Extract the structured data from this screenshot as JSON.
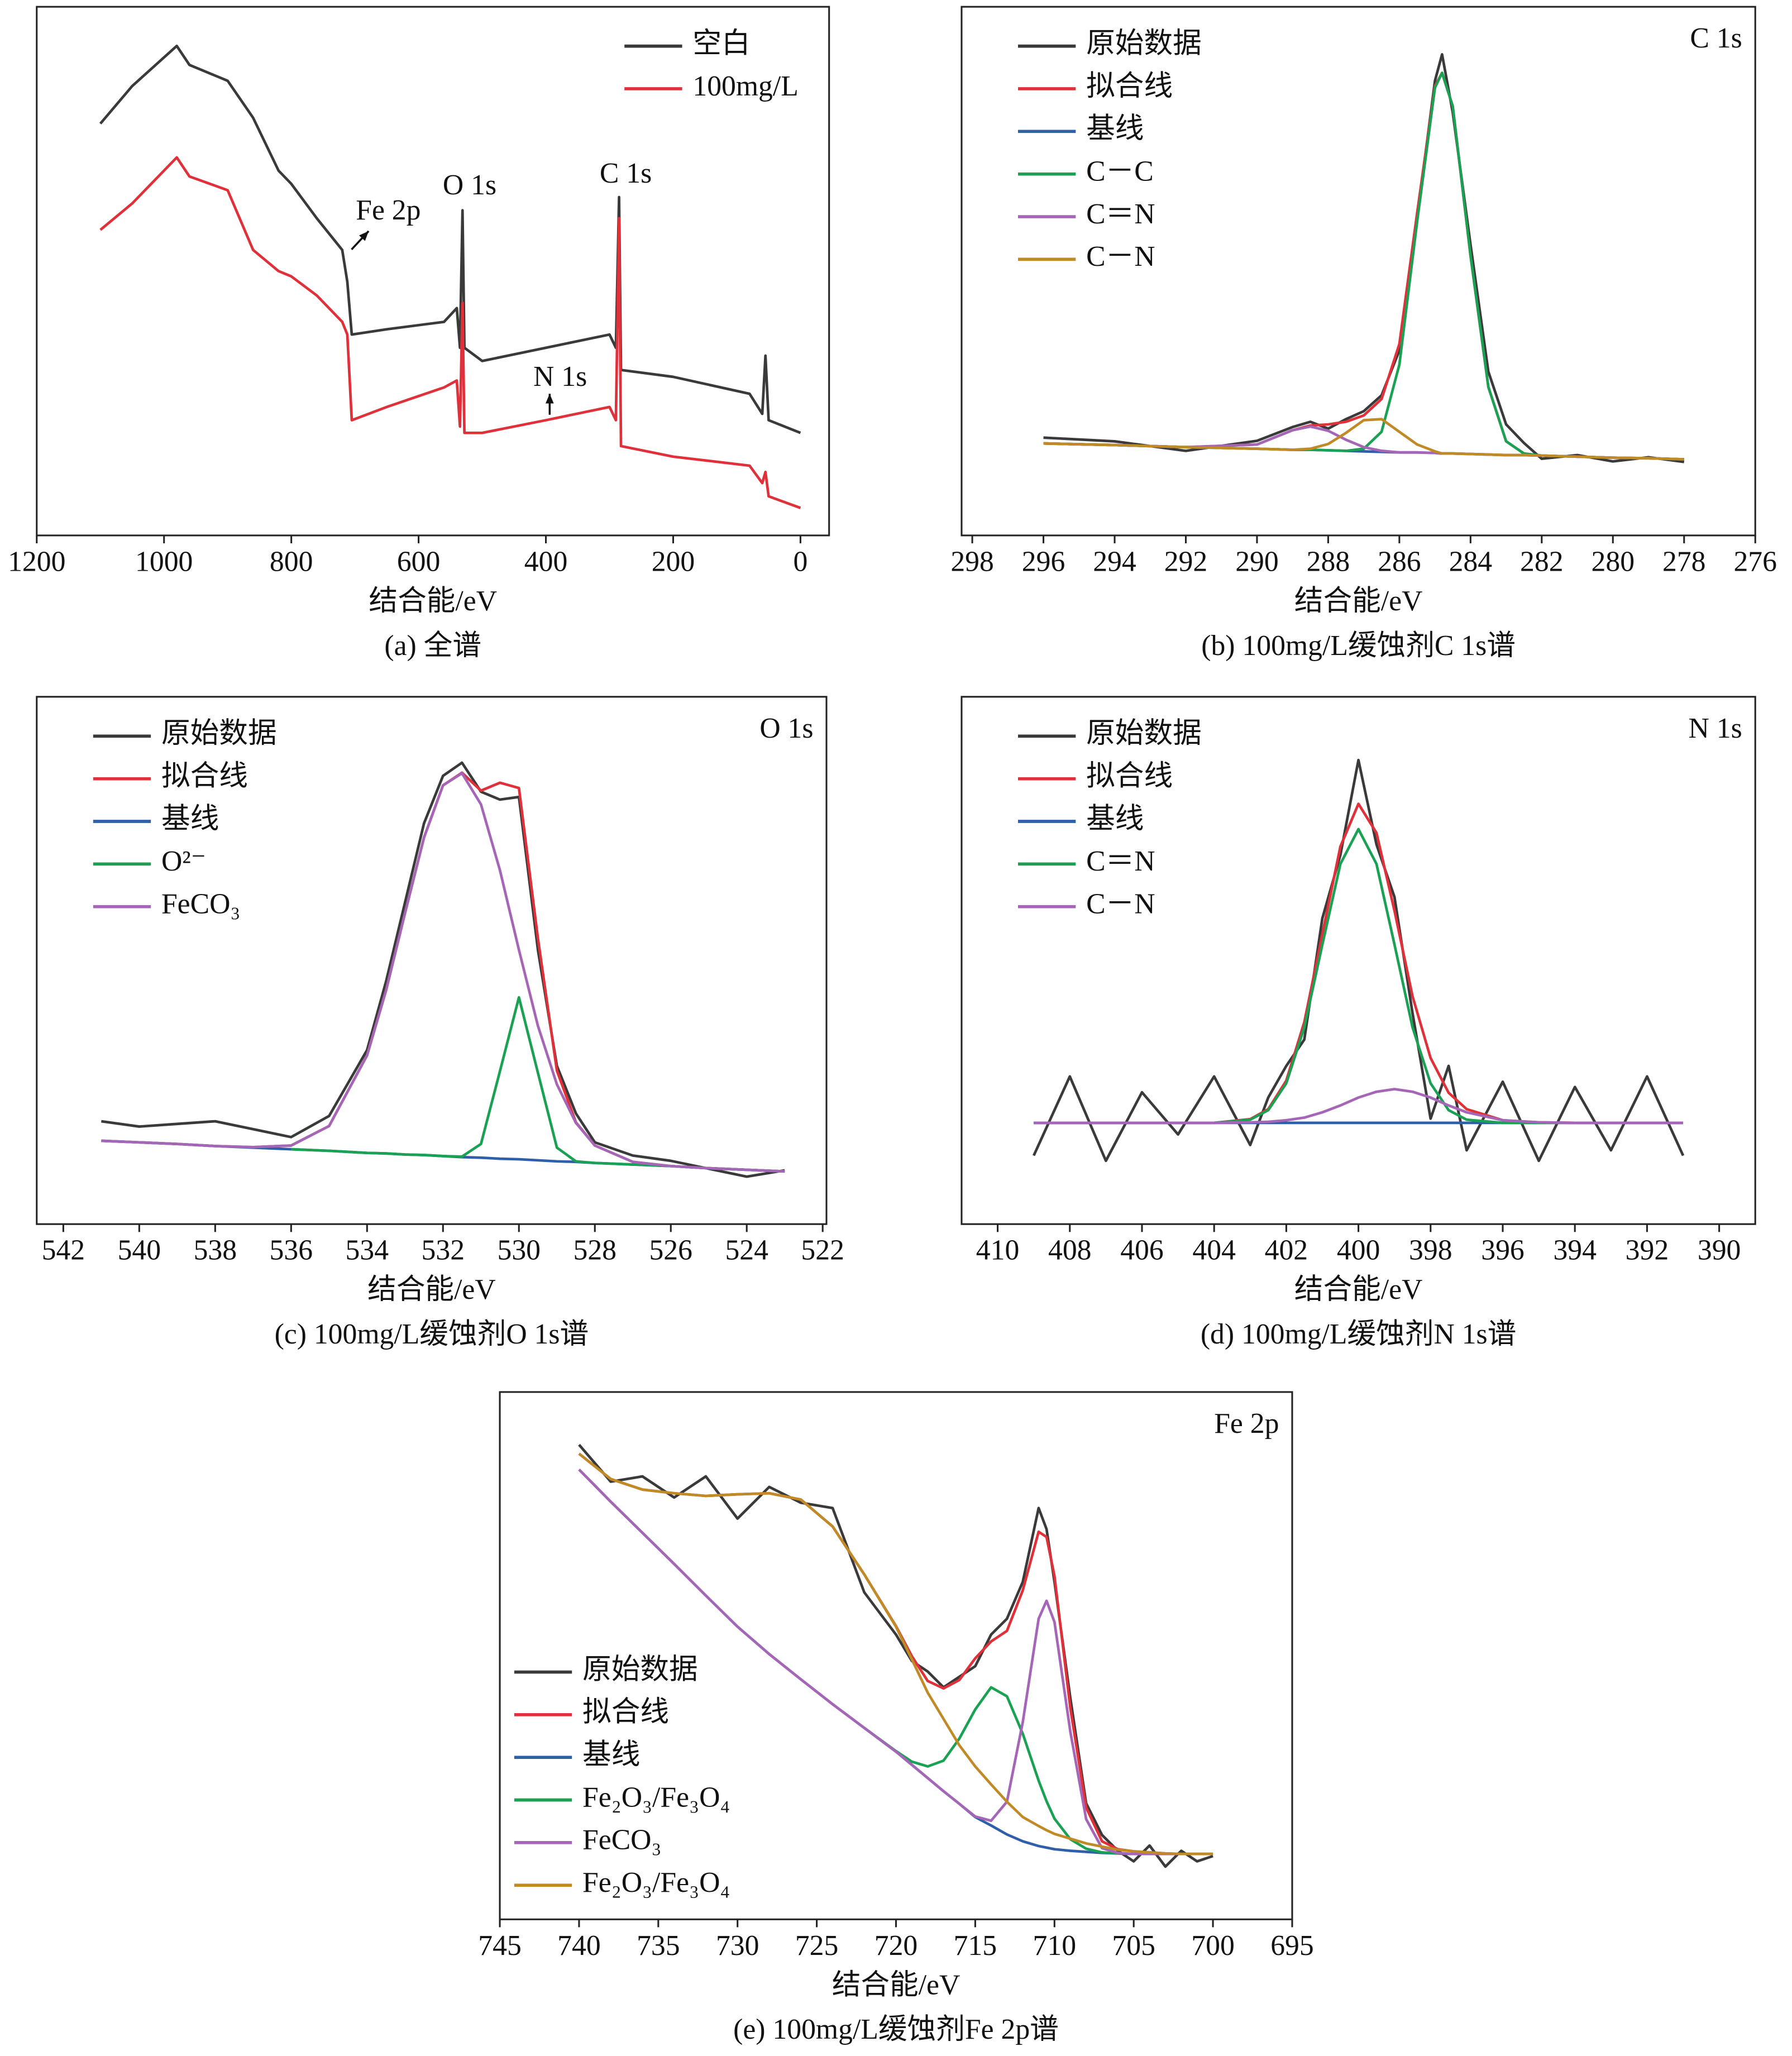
{
  "chart_data": [
    {
      "type": "line",
      "xlabel": "结合能/eV",
      "caption": "(a) 全谱",
      "legend": "upper right",
      "annotations": [
        "Fe 2p",
        "O 1s",
        "N 1s",
        "C 1s"
      ],
      "xlim": [
        1200,
        -45
      ],
      "ylim": [
        0,
        100
      ],
      "xticks": [
        1200,
        1000,
        800,
        600,
        400,
        200,
        0
      ],
      "x": [
        1100,
        1050,
        980,
        960,
        900,
        860,
        820,
        800,
        760,
        720,
        712,
        705,
        650,
        560,
        540,
        535,
        531,
        528,
        500,
        400,
        300,
        290,
        285,
        282,
        200,
        80,
        60,
        55,
        50,
        0
      ],
      "series": [
        {
          "name": "空白",
          "color": "#3a3a3a",
          "values": [
            77.9,
            85,
            92.6,
            89,
            86,
            79,
            69,
            66.5,
            60,
            54,
            48,
            38,
            39,
            40.4,
            43,
            35.5,
            61.5,
            35.5,
            33,
            35.5,
            38,
            35.5,
            64,
            31.3,
            30,
            26.8,
            23,
            34,
            21.8,
            19.4
          ]
        },
        {
          "name": "100mg/L",
          "color": "#e0313a",
          "values": [
            57.8,
            62.8,
            71.5,
            67.9,
            65.3,
            54,
            50,
            49,
            45.4,
            40.4,
            38,
            21.8,
            24.3,
            28,
            29.3,
            20.6,
            44,
            19.4,
            19.4,
            21.8,
            24.3,
            21.8,
            60,
            16.9,
            14.9,
            13.2,
            9.9,
            12,
            7.4,
            5.2
          ]
        }
      ]
    },
    {
      "type": "line",
      "label": "C 1s",
      "xlabel": "结合能/eV",
      "caption": "(b) 100mg/L缓蚀剂C 1s谱",
      "legend": "upper left",
      "xlim": [
        298.3,
        276
      ],
      "ylim": [
        0,
        100
      ],
      "xticks": [
        298,
        296,
        294,
        292,
        290,
        288,
        286,
        284,
        282,
        280,
        278,
        276
      ],
      "x": [
        296,
        294,
        292,
        290,
        289,
        288.5,
        288,
        287.5,
        287,
        286.5,
        286,
        285.5,
        285,
        284.8,
        284.5,
        284,
        283.5,
        283,
        282.5,
        282,
        281,
        280,
        279,
        278
      ],
      "series": [
        {
          "name": "原始数据",
          "color": "#3a3a3a",
          "values": [
            18.5,
            17.8,
            16.0,
            17.9,
            20.5,
            21.5,
            20.2,
            22.0,
            23.5,
            26.5,
            35.0,
            60.0,
            86.0,
            91.0,
            80.0,
            55.0,
            31.0,
            21.0,
            17.5,
            14.5,
            15.2,
            14.0,
            14.8,
            13.9
          ]
        },
        {
          "name": "拟合线",
          "color": "#e0313a",
          "values": [
            17.4,
            17.1,
            16.7,
            17.2,
            19.9,
            20.8,
            21.0,
            21.5,
            22.7,
            25.8,
            36.2,
            61.0,
            85.0,
            87.5,
            81.2,
            52.9,
            28.1,
            17.8,
            15.5,
            15.1,
            14.9,
            14.7,
            14.6,
            14.4
          ]
        },
        {
          "name": "基线",
          "color": "#2e5fa8",
          "values": [
            17.4,
            17.1,
            16.7,
            16.4,
            16.2,
            16.2,
            16.1,
            16.0,
            15.9,
            15.8,
            15.7,
            15.7,
            15.6,
            15.5,
            15.5,
            15.4,
            15.3,
            15.2,
            15.2,
            15.1,
            14.9,
            14.7,
            14.6,
            14.4
          ]
        },
        {
          "name": "C－C",
          "color": "#1aa154",
          "values": [
            17.4,
            17.1,
            16.7,
            16.4,
            16.2,
            16.2,
            16.1,
            16.0,
            16.4,
            19.6,
            32.3,
            59.4,
            84.7,
            87.5,
            81.2,
            52.9,
            28.1,
            17.8,
            15.5,
            15.1,
            14.9,
            14.7,
            14.6,
            14.4
          ]
        },
        {
          "name": "C＝N",
          "color": "#a566b8",
          "values": [
            17.4,
            17.1,
            16.7,
            17.2,
            19.9,
            20.6,
            19.8,
            18.1,
            16.7,
            16.0,
            15.7,
            15.7,
            15.6,
            15.5,
            15.5,
            15.4,
            15.3,
            15.2,
            15.2,
            15.1,
            14.9,
            14.7,
            14.6,
            14.4
          ]
        },
        {
          "name": "C－N",
          "color": "#c08a26",
          "values": [
            17.4,
            17.1,
            16.7,
            16.4,
            16.2,
            16.4,
            17.3,
            19.4,
            21.8,
            22.0,
            19.6,
            17.2,
            15.9,
            15.5,
            15.5,
            15.4,
            15.3,
            15.2,
            15.2,
            15.1,
            14.9,
            14.7,
            14.6,
            14.4
          ]
        }
      ]
    },
    {
      "type": "line",
      "label": "O 1s",
      "xlabel": "结合能/eV",
      "caption": "(c) 100mg/L缓蚀剂O 1s谱",
      "legend": "upper left",
      "xlim": [
        542.7,
        521.9
      ],
      "ylim": [
        0,
        100
      ],
      "xticks": [
        542,
        540,
        538,
        536,
        534,
        532,
        530,
        528,
        526,
        524,
        522
      ],
      "x": [
        541,
        540,
        539,
        538,
        537,
        536,
        535,
        534,
        533.5,
        533,
        532.5,
        532,
        531.5,
        531,
        530.5,
        530,
        529.5,
        529,
        528.5,
        528,
        527,
        526,
        525,
        524,
        523
      ],
      "series": [
        {
          "name": "原始数据",
          "color": "#3a3a3a",
          "values": [
            19.5,
            18.5,
            19.0,
            19.5,
            18.0,
            16.5,
            20.5,
            33.0,
            46.0,
            61.0,
            76.0,
            85.0,
            87.5,
            82.0,
            80.5,
            81.0,
            52.0,
            30.0,
            21.0,
            15.5,
            13.0,
            12.0,
            10.5,
            9.0,
            10.2
          ]
        },
        {
          "name": "拟合线",
          "color": "#e0313a",
          "values": [
            15.8,
            15.5,
            15.2,
            14.8,
            14.6,
            14.9,
            18.6,
            32.0,
            44.3,
            59.0,
            73.3,
            83.2,
            85.6,
            82.2,
            83.7,
            82.7,
            54.2,
            29.1,
            19.3,
            14.9,
            11.8,
            11.0,
            10.6,
            10.3,
            10.0
          ]
        },
        {
          "name": "基线",
          "color": "#2e5fa8",
          "values": [
            15.8,
            15.5,
            15.2,
            14.8,
            14.5,
            14.2,
            13.9,
            13.5,
            13.4,
            13.2,
            13.1,
            12.9,
            12.7,
            12.6,
            12.4,
            12.3,
            12.1,
            11.9,
            11.8,
            11.6,
            11.3,
            11.0,
            10.6,
            10.3,
            10.0
          ]
        },
        {
          "name": "O²⁻",
          "color": "#1aa154",
          "values": [
            null,
            null,
            null,
            null,
            null,
            14.2,
            13.9,
            13.5,
            13.4,
            13.2,
            13.1,
            12.9,
            12.8,
            15.2,
            29.0,
            43.0,
            28.7,
            14.5,
            11.9,
            11.6,
            11.3,
            11.0,
            10.6,
            10.3,
            10.0
          ]
        },
        {
          "name": "FeCO₃",
          "color": "#a566b8",
          "values": [
            15.8,
            15.5,
            15.2,
            14.8,
            14.6,
            14.9,
            18.6,
            32.0,
            44.3,
            59.0,
            73.3,
            83.2,
            85.5,
            79.6,
            67.1,
            52.0,
            37.6,
            26.5,
            19.2,
            14.9,
            11.8,
            11.0,
            10.6,
            10.3,
            10.0
          ]
        }
      ]
    },
    {
      "type": "line",
      "label": "N 1s",
      "xlabel": "结合能/eV",
      "caption": "(d) 100mg/L缓蚀剂N 1s谱",
      "legend": "upper left",
      "xlim": [
        411,
        389
      ],
      "ylim": [
        0,
        100
      ],
      "xticks": [
        410,
        408,
        406,
        404,
        402,
        400,
        398,
        396,
        394,
        392,
        390
      ],
      "x": [
        409,
        408,
        407,
        406,
        405,
        404,
        403,
        402.5,
        402,
        401.5,
        401,
        400.5,
        400,
        399.5,
        399,
        398.5,
        398,
        397.5,
        397,
        396,
        395,
        394,
        393,
        392,
        391
      ],
      "series": [
        {
          "name": "原始数据",
          "color": "#3a3a3a",
          "values": [
            13,
            28,
            12,
            25,
            17,
            28,
            15,
            24,
            30,
            35,
            58,
            70,
            88,
            72,
            62,
            40,
            20,
            30,
            14,
            27,
            12,
            26,
            14,
            28,
            13
          ]
        },
        {
          "name": "拟合线",
          "color": "#e0313a",
          "values": [
            19.2,
            19.2,
            19.2,
            19.2,
            19.2,
            19.2,
            19.9,
            21.8,
            27.2,
            38.3,
            55.0,
            71.6,
            79.7,
            74.2,
            59.4,
            43.2,
            31.5,
            24.9,
            21.8,
            19.7,
            19.3,
            19.2,
            19.2,
            19.2,
            19.2
          ]
        },
        {
          "name": "基线",
          "color": "#2e5fa8",
          "values": [
            19.2,
            19.2,
            19.2,
            19.2,
            19.2,
            19.2,
            19.2,
            19.2,
            19.2,
            19.2,
            19.2,
            19.2,
            19.2,
            19.2,
            19.2,
            19.2,
            19.2,
            19.2,
            19.2,
            19.2,
            19.2,
            19.2,
            19.2,
            19.2,
            19.2
          ]
        },
        {
          "name": "C＝N",
          "color": "#1aa154",
          "values": [
            19.2,
            19.2,
            19.2,
            19.2,
            19.2,
            19.2,
            19.8,
            21.6,
            26.7,
            37.3,
            53.0,
            68.3,
            74.9,
            68.3,
            53.0,
            37.3,
            26.7,
            21.6,
            19.8,
            19.2,
            19.2,
            19.2,
            19.2,
            19.2,
            19.2
          ]
        },
        {
          "name": "C－N",
          "color": "#a566b8",
          "values": [
            19.2,
            19.2,
            19.2,
            19.2,
            19.2,
            19.2,
            19.3,
            19.4,
            19.7,
            20.2,
            21.2,
            22.5,
            24.0,
            25.1,
            25.6,
            25.1,
            24.0,
            22.5,
            21.2,
            19.7,
            19.3,
            19.2,
            19.2,
            19.2,
            19.2
          ]
        }
      ]
    },
    {
      "type": "line",
      "label": "Fe 2p",
      "xlabel": "结合能/eV",
      "caption": "(e) 100mg/L缓蚀剂Fe 2p谱",
      "legend": "lower left",
      "xlim": [
        745,
        695
      ],
      "ylim": [
        0,
        100
      ],
      "xticks": [
        745,
        740,
        735,
        730,
        725,
        720,
        715,
        710,
        705,
        700,
        695
      ],
      "x": [
        740,
        738,
        736,
        734,
        732,
        730,
        728,
        726,
        724,
        722,
        720,
        719,
        718,
        717,
        716,
        715,
        714,
        713,
        712,
        711,
        710.5,
        710,
        709,
        708,
        707,
        706,
        705,
        704,
        703,
        702,
        701,
        700
      ],
      "series": [
        {
          "name": "原始数据",
          "color": "#3a3a3a",
          "values": [
            90,
            83,
            84,
            80,
            84,
            76,
            82,
            79,
            78,
            62,
            54,
            49,
            47,
            44,
            46,
            48,
            54,
            57,
            64,
            78,
            74,
            64,
            42,
            22,
            16,
            13,
            11,
            14,
            10,
            13,
            11,
            12
          ]
        },
        {
          "name": "拟合线",
          "color": "#e0313a",
          "values": [
            88.3,
            83.5,
            81.5,
            80.8,
            80.3,
            80.6,
            80.8,
            79.6,
            74.5,
            65.4,
            55.6,
            49.9,
            45.2,
            43.8,
            45.4,
            49.5,
            52.7,
            54.7,
            62.4,
            73.5,
            72.5,
            65.1,
            40.1,
            21.2,
            14.8,
            13.3,
            12.9,
            12.7,
            12.5,
            12.4,
            12.4,
            12.4
          ]
        },
        {
          "name": "基线",
          "color": "#2e5fa8",
          "values": [
            85.3,
            79.2,
            73.3,
            67.4,
            61.4,
            55.5,
            50.3,
            45.5,
            40.8,
            36.3,
            31.8,
            29.3,
            26.8,
            24.3,
            21.9,
            19.4,
            17.8,
            16.1,
            14.8,
            13.9,
            13.6,
            13.3,
            13.0,
            12.8,
            12.6,
            12.5,
            12.4,
            12.4,
            12.4,
            12.4,
            12.4,
            12.4
          ]
        },
        {
          "name": "Fe₂O₃/Fe₃O₄",
          "color": "#1aa154",
          "values": [
            null,
            null,
            null,
            null,
            null,
            null,
            null,
            null,
            null,
            36.3,
            31.9,
            29.9,
            29.0,
            30.1,
            34.3,
            39.8,
            44.0,
            42.3,
            35.2,
            26.3,
            22.4,
            19.1,
            15.2,
            13.4,
            12.7,
            12.5,
            12.4,
            12.4,
            12.4,
            12.4,
            12.4,
            12.4
          ]
        },
        {
          "name": "FeCO₃",
          "color": "#a566b8",
          "values": [
            85.3,
            79.2,
            73.3,
            67.4,
            61.4,
            55.5,
            50.3,
            45.5,
            40.8,
            36.3,
            31.8,
            29.3,
            26.8,
            24.3,
            21.9,
            19.5,
            18.7,
            22.3,
            37.4,
            57.0,
            60.4,
            56.4,
            35.6,
            19.0,
            13.5,
            12.6,
            12.4,
            12.4,
            12.4,
            12.4,
            12.4,
            12.4
          ]
        },
        {
          "name": "Fe₂O₃/Fe₃O₄",
          "color": "#c08a26",
          "values": [
            88.3,
            83.5,
            81.5,
            80.8,
            80.3,
            80.6,
            80.8,
            79.6,
            74.5,
            65.4,
            55.5,
            49.3,
            43.0,
            38.0,
            33.0,
            29.0,
            25.6,
            22.3,
            19.4,
            17.7,
            16.9,
            16.2,
            15.3,
            14.4,
            13.8,
            13.2,
            12.9,
            12.7,
            12.5,
            12.4,
            12.4,
            12.4
          ]
        }
      ]
    }
  ]
}
